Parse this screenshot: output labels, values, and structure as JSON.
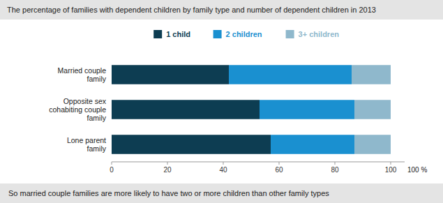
{
  "chart_data": {
    "type": "bar",
    "orientation": "horizontal",
    "stacked": true,
    "title": "The percentage of families with dependent children by family type and number of dependent children in 2013",
    "categories": [
      "Married couple\nfamily",
      "Opposite sex\ncohabiting couple\nfamily",
      "Lone parent\nfamily"
    ],
    "series": [
      {
        "name": "1 child",
        "color": "#0d3d52",
        "values": [
          42,
          53,
          57
        ]
      },
      {
        "name": "2 children",
        "color": "#1a90d0",
        "values": [
          44,
          34,
          30
        ]
      },
      {
        "name": "3+ children",
        "color": "#8fb8cc",
        "values": [
          14,
          13,
          13
        ]
      }
    ],
    "xlim": [
      0,
      105
    ],
    "xticks": [
      0,
      20,
      40,
      60,
      80,
      100
    ],
    "grid": false,
    "legend": "top",
    "annotations": [
      "100 %",
      "So married couple families are more likely to have two or more children than other family types"
    ]
  }
}
